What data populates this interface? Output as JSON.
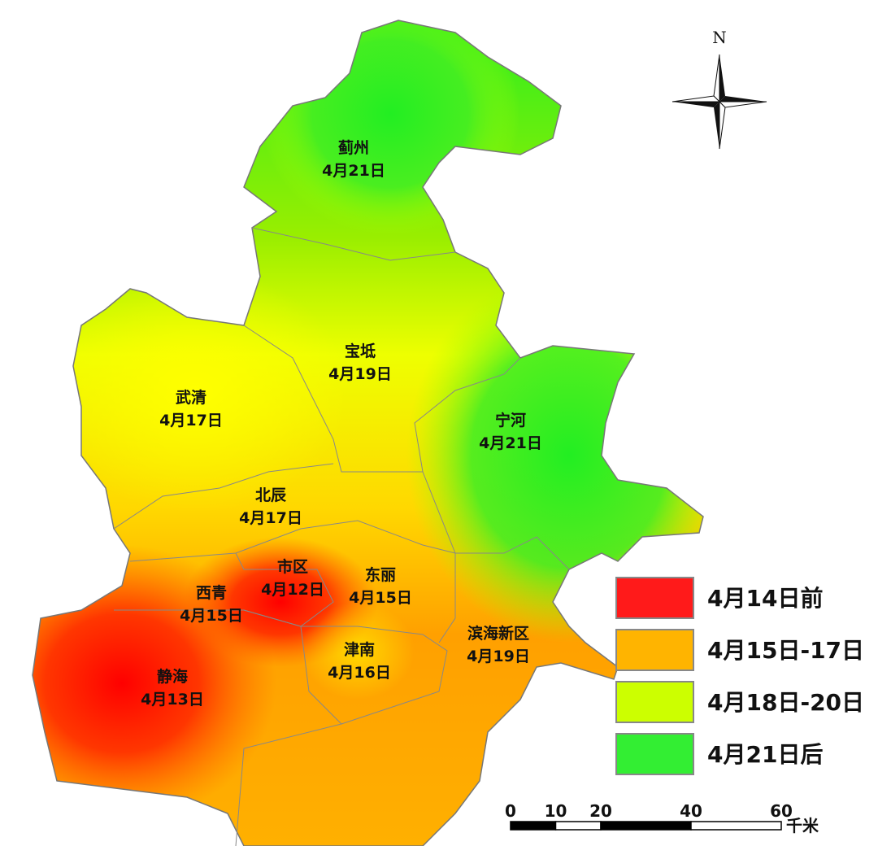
{
  "map": {
    "north": "N",
    "districts": [
      {
        "name": "蓟州",
        "date": "4月21日"
      },
      {
        "name": "宝坻",
        "date": "4月19日"
      },
      {
        "name": "武清",
        "date": "4月17日"
      },
      {
        "name": "宁河",
        "date": "4月21日"
      },
      {
        "name": "北辰",
        "date": "4月17日"
      },
      {
        "name": "市区",
        "date": "4月12日"
      },
      {
        "name": "东丽",
        "date": "4月15日"
      },
      {
        "name": "西青",
        "date": "4月15日"
      },
      {
        "name": "津南",
        "date": "4月16日"
      },
      {
        "name": "滨海新区",
        "date": "4月19日"
      },
      {
        "name": "静海",
        "date": "4月13日"
      }
    ],
    "legend": [
      {
        "label": "4月14日前",
        "color": "#ff1a1a"
      },
      {
        "label": "4月15日-17日",
        "color": "#ffb400"
      },
      {
        "label": "4月18日-20日",
        "color": "#ccff00"
      },
      {
        "label": "4月21日后",
        "color": "#33ee33"
      }
    ],
    "scale": {
      "ticks": [
        0,
        10,
        20,
        40,
        60
      ],
      "unit": "千米"
    }
  }
}
